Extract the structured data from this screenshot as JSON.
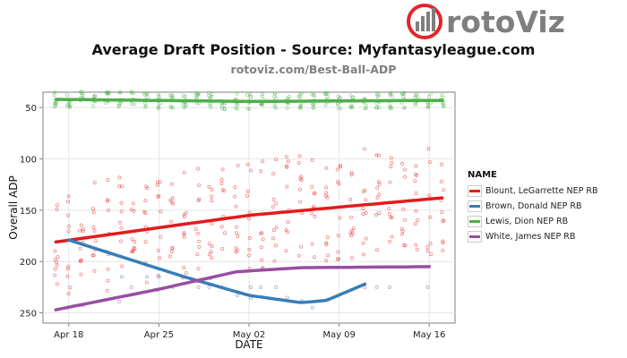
{
  "header": {
    "brand_text": "rotoViz",
    "title": "Average Draft Position - Source: Myfantasyleague.com",
    "subtitle": "rotoviz.com/Best-Ball-ADP"
  },
  "colors": {
    "blount": "#e41a1c",
    "brown": "#377eb8",
    "lewis": "#4daf4a",
    "white": "#984ea3",
    "logo_red": "#e2252b",
    "logo_gray": "#7f7f7f"
  },
  "chart_data": {
    "type": "scatter",
    "title": "Average Draft Position - Source: Myfantasyleague.com",
    "subtitle": "rotoviz.com/Best-Ball-ADP",
    "xlabel": "DATE",
    "ylabel": "Overall ADP",
    "x_range": [
      "2015-04-16",
      "2015-05-18"
    ],
    "y_range": [
      260,
      35
    ],
    "y_reversed": true,
    "x_ticks": [
      {
        "date": "2015-04-18",
        "label": "Apr 18"
      },
      {
        "date": "2015-04-25",
        "label": "Apr 25"
      },
      {
        "date": "2015-05-02",
        "label": "May 02"
      },
      {
        "date": "2015-05-09",
        "label": "May 09"
      },
      {
        "date": "2015-05-16",
        "label": "May 16"
      }
    ],
    "y_ticks": [
      50,
      100,
      150,
      200,
      250
    ],
    "grid": true,
    "legend_title": "NAME",
    "legend_position": "right",
    "series": [
      {
        "name": "Blount, LeGarrette NEP RB",
        "color": "#e41a1c",
        "trend": [
          [
            "2015-04-17",
            181
          ],
          [
            "2015-04-25",
            167
          ],
          [
            "2015-05-02",
            155
          ],
          [
            "2015-05-09",
            147
          ],
          [
            "2015-05-17",
            138
          ]
        ],
        "points_range": [
          90,
          240
        ]
      },
      {
        "name": "Brown, Donald NEP RB",
        "color": "#377eb8",
        "trend": [
          [
            "2015-04-18",
            179
          ],
          [
            "2015-04-22",
            195
          ],
          [
            "2015-04-27",
            215
          ],
          [
            "2015-05-02",
            233
          ],
          [
            "2015-05-06",
            240
          ],
          [
            "2015-05-08",
            238
          ],
          [
            "2015-05-11",
            222
          ]
        ],
        "points_range": [
          215,
          245
        ]
      },
      {
        "name": "Lewis, Dion NEP RB",
        "color": "#4daf4a",
        "trend": [
          [
            "2015-04-17",
            42
          ],
          [
            "2015-05-02",
            44
          ],
          [
            "2015-05-17",
            43
          ]
        ],
        "points_range": [
          30,
          60
        ]
      },
      {
        "name": "White, James NEP RB",
        "color": "#984ea3",
        "trend": [
          [
            "2015-04-17",
            247
          ],
          [
            "2015-04-25",
            227
          ],
          [
            "2015-05-01",
            210
          ],
          [
            "2015-05-06",
            206
          ],
          [
            "2015-05-16",
            205
          ]
        ],
        "points_range": [
          225,
          245
        ]
      }
    ]
  }
}
